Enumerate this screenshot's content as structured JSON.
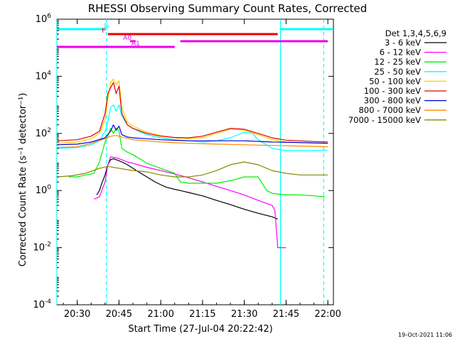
{
  "chart_data": {
    "type": "line",
    "title": "RHESSI Observing Summary Count Rates, Corrected",
    "xlabel": "Start Time (27-Jul-04 20:22:42)",
    "ylabel": "Corrected Count Rate (s⁻¹ detector⁻¹)",
    "yscale": "log",
    "xlim": [
      "20:22:42",
      "22:02:00"
    ],
    "ylim": [
      0.0001,
      1000000
    ],
    "x_ticks": [
      "20:30",
      "20:45",
      "21:00",
      "21:15",
      "21:30",
      "21:45",
      "22:00"
    ],
    "y_ticks": [
      {
        "base": "10",
        "exp": "-4",
        "value": 0.0001
      },
      {
        "base": "10",
        "exp": "-2",
        "value": 0.01
      },
      {
        "base": "10",
        "exp": "0",
        "value": 1
      },
      {
        "base": "10",
        "exp": "2",
        "value": 100
      },
      {
        "base": "10",
        "exp": "4",
        "value": 10000
      },
      {
        "base": "10",
        "exp": "6",
        "value": 1000000
      }
    ],
    "legend_title": "Det 1,3,4,5,6,9",
    "legend_position": "right",
    "date_stamp": "19-Oct-2021 11:06",
    "series": [
      {
        "name": "3 - 6 keV",
        "color": "#000000",
        "x": [
          "20:37",
          "20:38",
          "20:39",
          "20:40",
          "20:41",
          "20:42",
          "20:43",
          "20:44",
          "20:45",
          "20:46",
          "20:48",
          "20:50",
          "20:52",
          "20:55",
          "20:58",
          "21:00",
          "21:02",
          "21:05",
          "21:07",
          "21:10",
          "21:15",
          "21:20",
          "21:25",
          "21:30",
          "21:35",
          "21:40",
          "21:42"
        ],
        "y": [
          0.7,
          1.0,
          2.0,
          3.5,
          8,
          12,
          13,
          12,
          11,
          10,
          8,
          6,
          4.5,
          3,
          2,
          1.6,
          1.3,
          1.1,
          1.0,
          0.85,
          0.65,
          0.45,
          0.32,
          0.22,
          0.16,
          0.12,
          0.1
        ]
      },
      {
        "name": "6 - 12 keV",
        "color": "#ff00ff",
        "x": [
          "20:36",
          "20:38",
          "20:40",
          "20:41",
          "20:42",
          "20:44",
          "20:46",
          "20:48",
          "20:50",
          "20:55",
          "21:00",
          "21:05",
          "21:10",
          "21:15",
          "21:20",
          "21:25",
          "21:30",
          "21:35",
          "21:40",
          "21:41",
          "21:42",
          "21:43",
          "21:44",
          "21:45"
        ],
        "y": [
          0.5,
          0.6,
          2,
          8,
          15,
          14,
          12,
          10,
          9,
          6.5,
          5,
          3.8,
          2.8,
          2,
          1.4,
          1,
          0.7,
          0.45,
          0.3,
          0.2,
          0.01,
          0.01,
          0.01,
          0.01
        ]
      },
      {
        "name": "12 - 25 keV",
        "color": "#00ee00",
        "x": [
          "20:27",
          "20:30",
          "20:33",
          "20:36",
          "20:38",
          "20:40",
          "20:41",
          "20:42",
          "20:43",
          "20:44",
          "20:45",
          "20:46",
          "20:48",
          "20:50",
          "20:53",
          "20:55",
          "21:00",
          "21:05",
          "21:07",
          "21:10",
          "21:15",
          "21:20",
          "21:25",
          "21:30",
          "21:35",
          "21:38",
          "21:40",
          "21:45",
          "21:50",
          "21:55",
          "21:59"
        ],
        "y": [
          3,
          3,
          3.5,
          4,
          10,
          50,
          80,
          150,
          100,
          150,
          120,
          30,
          22,
          18,
          12,
          9,
          6,
          4,
          2,
          1.8,
          1.8,
          1.8,
          2.2,
          3,
          3,
          1,
          0.8,
          0.7,
          0.7,
          0.65,
          0.6
        ]
      },
      {
        "name": "25 - 50 keV",
        "color": "#00ffff",
        "x": [
          "20:23",
          "20:30",
          "20:35",
          "20:38",
          "20:40",
          "20:41",
          "20:42",
          "20:43",
          "20:44",
          "20:45",
          "20:46",
          "20:48",
          "20:50",
          "20:52",
          "20:55",
          "21:00",
          "21:05",
          "21:10",
          "21:15",
          "21:20",
          "21:25",
          "21:30",
          "21:33",
          "21:35",
          "21:40",
          "21:45",
          "21:50",
          "21:55",
          "22:00"
        ],
        "y": [
          30,
          32,
          40,
          55,
          120,
          250,
          800,
          1000,
          600,
          1000,
          400,
          200,
          150,
          120,
          90,
          70,
          60,
          55,
          50,
          55,
          70,
          110,
          100,
          60,
          30,
          25,
          25,
          25,
          26
        ]
      },
      {
        "name": "50 - 100 keV",
        "color": "#ffcc00",
        "x": [
          "20:23",
          "20:30",
          "20:35",
          "20:38",
          "20:40",
          "20:41",
          "20:42",
          "20:43",
          "20:44",
          "20:45",
          "20:46",
          "20:48",
          "20:50",
          "20:55",
          "21:00",
          "21:05",
          "21:10",
          "21:15",
          "21:20",
          "21:25",
          "21:30",
          "21:35",
          "21:40",
          "21:45",
          "21:50",
          "21:55",
          "22:00"
        ],
        "y": [
          45,
          50,
          65,
          100,
          300,
          1500,
          6000,
          8000,
          5000,
          7000,
          800,
          250,
          180,
          110,
          85,
          70,
          65,
          70,
          100,
          140,
          130,
          90,
          60,
          50,
          48,
          45,
          45
        ]
      },
      {
        "name": "100 - 300 keV",
        "color": "#dd0000",
        "x": [
          "20:23",
          "20:30",
          "20:35",
          "20:38",
          "20:40",
          "20:41",
          "20:42",
          "20:43",
          "20:44",
          "20:45",
          "20:46",
          "20:48",
          "20:50",
          "20:55",
          "21:00",
          "21:05",
          "21:10",
          "21:15",
          "21:20",
          "21:25",
          "21:30",
          "21:35",
          "21:40",
          "21:45",
          "21:50",
          "21:55",
          "22:00"
        ],
        "y": [
          55,
          60,
          80,
          120,
          500,
          2500,
          4000,
          6000,
          2500,
          4500,
          500,
          200,
          150,
          100,
          80,
          72,
          70,
          80,
          110,
          150,
          140,
          100,
          70,
          58,
          55,
          52,
          50
        ]
      },
      {
        "name": "300 - 800 keV",
        "color": "#0000dd",
        "x": [
          "20:23",
          "20:30",
          "20:35",
          "20:40",
          "20:42",
          "20:43",
          "20:44",
          "20:45",
          "20:46",
          "20:48",
          "20:50",
          "20:55",
          "21:00",
          "21:10",
          "21:20",
          "21:30",
          "21:40",
          "21:50",
          "22:00"
        ],
        "y": [
          40,
          42,
          50,
          70,
          120,
          200,
          130,
          180,
          90,
          75,
          70,
          65,
          60,
          55,
          55,
          55,
          50,
          48,
          45
        ]
      },
      {
        "name": "800 - 7000 keV",
        "color": "#ff8800",
        "x": [
          "20:23",
          "20:30",
          "20:35",
          "20:40",
          "20:42",
          "20:44",
          "20:46",
          "20:50",
          "21:00",
          "21:10",
          "21:20",
          "21:30",
          "21:40",
          "21:50",
          "22:00"
        ],
        "y": [
          32,
          34,
          45,
          65,
          80,
          85,
          75,
          60,
          50,
          45,
          42,
          40,
          38,
          36,
          34
        ]
      },
      {
        "name": "7000 - 15000 keV",
        "color": "#888800",
        "x": [
          "20:23",
          "20:28",
          "20:33",
          "20:38",
          "20:41",
          "20:45",
          "20:50",
          "20:55",
          "21:00",
          "21:05",
          "21:10",
          "21:15",
          "21:20",
          "21:25",
          "21:30",
          "21:35",
          "21:40",
          "21:45",
          "21:50",
          "22:00"
        ],
        "y": [
          3,
          3.3,
          4,
          6,
          7,
          6,
          5,
          4.5,
          3.5,
          3,
          3,
          3.5,
          5,
          8,
          10,
          8,
          5,
          4,
          3.5,
          3.5
        ]
      }
    ],
    "vertical_lines": [
      {
        "x": "20:22:42",
        "style": "solid",
        "color": "#00ffff"
      },
      {
        "x": "20:40:30",
        "style": "dashed",
        "color": "#00ffff"
      },
      {
        "x": "21:43:00",
        "style": "solid",
        "color": "#00ffff"
      },
      {
        "x": "21:58:30",
        "style": "dashed",
        "color": "#00ffff"
      }
    ],
    "annotations": [
      {
        "label": "N",
        "color": "#00ffff",
        "row": "top",
        "spans": [
          [
            "20:22:42",
            "20:40:30"
          ],
          [
            "21:43:00",
            "22:02:00"
          ]
        ],
        "label_at": "20:40:30"
      },
      {
        "label": "F",
        "color": "#ee0000",
        "row": "second",
        "spans": [
          [
            "20:41:00",
            "21:42:00"
          ]
        ],
        "label_at": "20:39:30"
      },
      {
        "label": "A0",
        "color": "#ee00ee",
        "row": "third",
        "spans": [
          [
            "20:49:00",
            "20:51:00"
          ],
          [
            "21:07:00",
            "22:00:00"
          ]
        ],
        "label_at": "20:48:00"
      },
      {
        "label": "A1",
        "color": "#ee00ee",
        "row": "fourth",
        "spans": [
          [
            "20:22:42",
            "21:05:00"
          ]
        ],
        "label_at": "20:51:00"
      }
    ]
  }
}
